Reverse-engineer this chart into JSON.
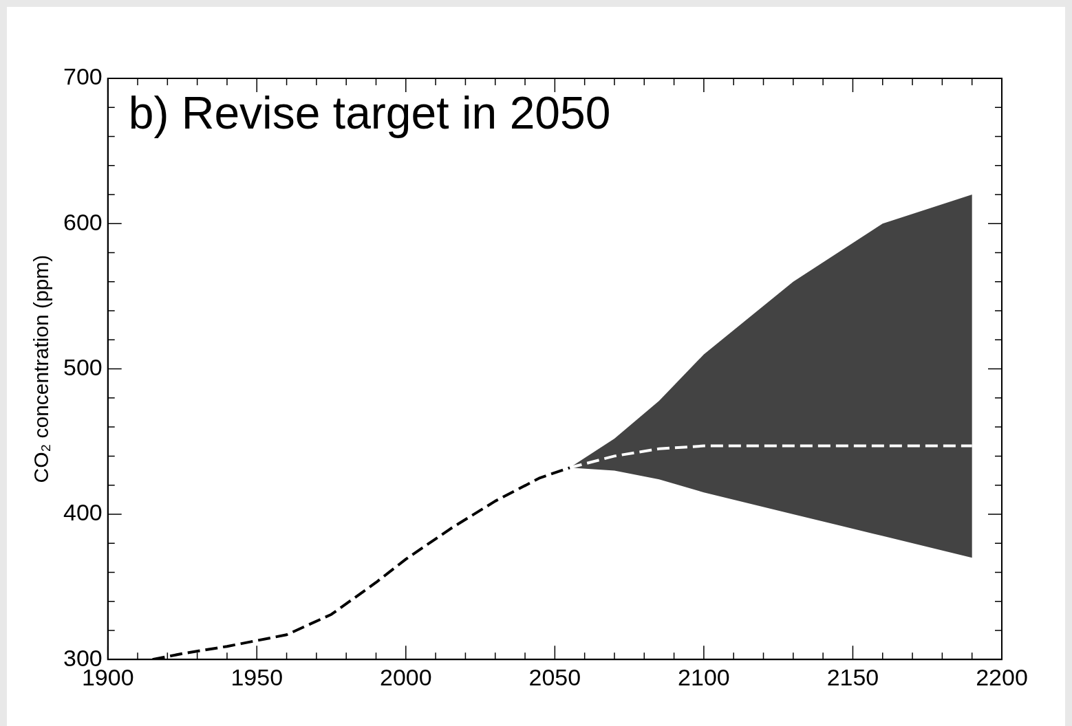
{
  "chart_data": {
    "type": "line",
    "title": "b) Revise target in 2050",
    "ylabel": "CO₂ concentration (ppm)",
    "line_style": "dashed",
    "marker": "none",
    "grid": false,
    "legend": false,
    "xlim": [
      1900,
      2200
    ],
    "ylim": [
      300,
      700
    ],
    "xticks": [
      1900,
      {
        "value": 1910,
        "label": null
      },
      {
        "value": 1920,
        "label": null
      },
      {
        "value": 1930,
        "label": null
      },
      {
        "value": 1940,
        "label": null
      },
      1950,
      {
        "value": 1960,
        "label": null
      },
      {
        "value": 1970,
        "label": null
      },
      {
        "value": 1980,
        "label": null
      },
      {
        "value": 1990,
        "label": null
      },
      2000,
      {
        "value": 2010,
        "label": null
      },
      {
        "value": 2020,
        "label": null
      },
      {
        "value": 2030,
        "label": null
      },
      {
        "value": 2040,
        "label": null
      },
      2050,
      {
        "value": 2060,
        "label": null
      },
      {
        "value": 2070,
        "label": null
      },
      {
        "value": 2080,
        "label": null
      },
      {
        "value": 2090,
        "label": null
      },
      2100,
      {
        "value": 2110,
        "label": null
      },
      {
        "value": 2120,
        "label": null
      },
      {
        "value": 2130,
        "label": null
      },
      {
        "value": 2140,
        "label": null
      },
      2150,
      {
        "value": 2160,
        "label": null
      },
      {
        "value": 2170,
        "label": null
      },
      {
        "value": 2180,
        "label": null
      },
      {
        "value": 2190,
        "label": null
      },
      2200
    ],
    "yticks": [
      300,
      {
        "value": 320,
        "label": null
      },
      {
        "value": 340,
        "label": null
      },
      {
        "value": 360,
        "label": null
      },
      {
        "value": 380,
        "label": null
      },
      400,
      {
        "value": 420,
        "label": null
      },
      {
        "value": 440,
        "label": null
      },
      {
        "value": 460,
        "label": null
      },
      {
        "value": 480,
        "label": null
      },
      500,
      {
        "value": 520,
        "label": null
      },
      {
        "value": 540,
        "label": null
      },
      {
        "value": 560,
        "label": null
      },
      {
        "value": 580,
        "label": null
      },
      600,
      {
        "value": 620,
        "label": null
      },
      {
        "value": 640,
        "label": null
      },
      {
        "value": 660,
        "label": null
      },
      {
        "value": 680,
        "label": null
      },
      700
    ],
    "series": [
      {
        "color": "#000000",
        "x": [
          1915,
          1925,
          1940,
          1960,
          1975,
          1990,
          2000,
          2015,
          2030,
          2045,
          2055
        ],
        "values": [
          300,
          304,
          309,
          317,
          331,
          353,
          369,
          390,
          409,
          425,
          432
        ]
      },
      {
        "color": "#ffffff",
        "x": [
          2055,
          2070,
          2085,
          2100,
          2130,
          2160,
          2190
        ],
        "values": [
          432,
          440,
          445,
          447,
          447,
          447,
          447
        ],
        "lower": [
          432,
          430,
          424,
          415,
          400,
          385,
          370
        ],
        "upper": [
          432,
          452,
          478,
          510,
          560,
          600,
          620
        ]
      }
    ]
  }
}
